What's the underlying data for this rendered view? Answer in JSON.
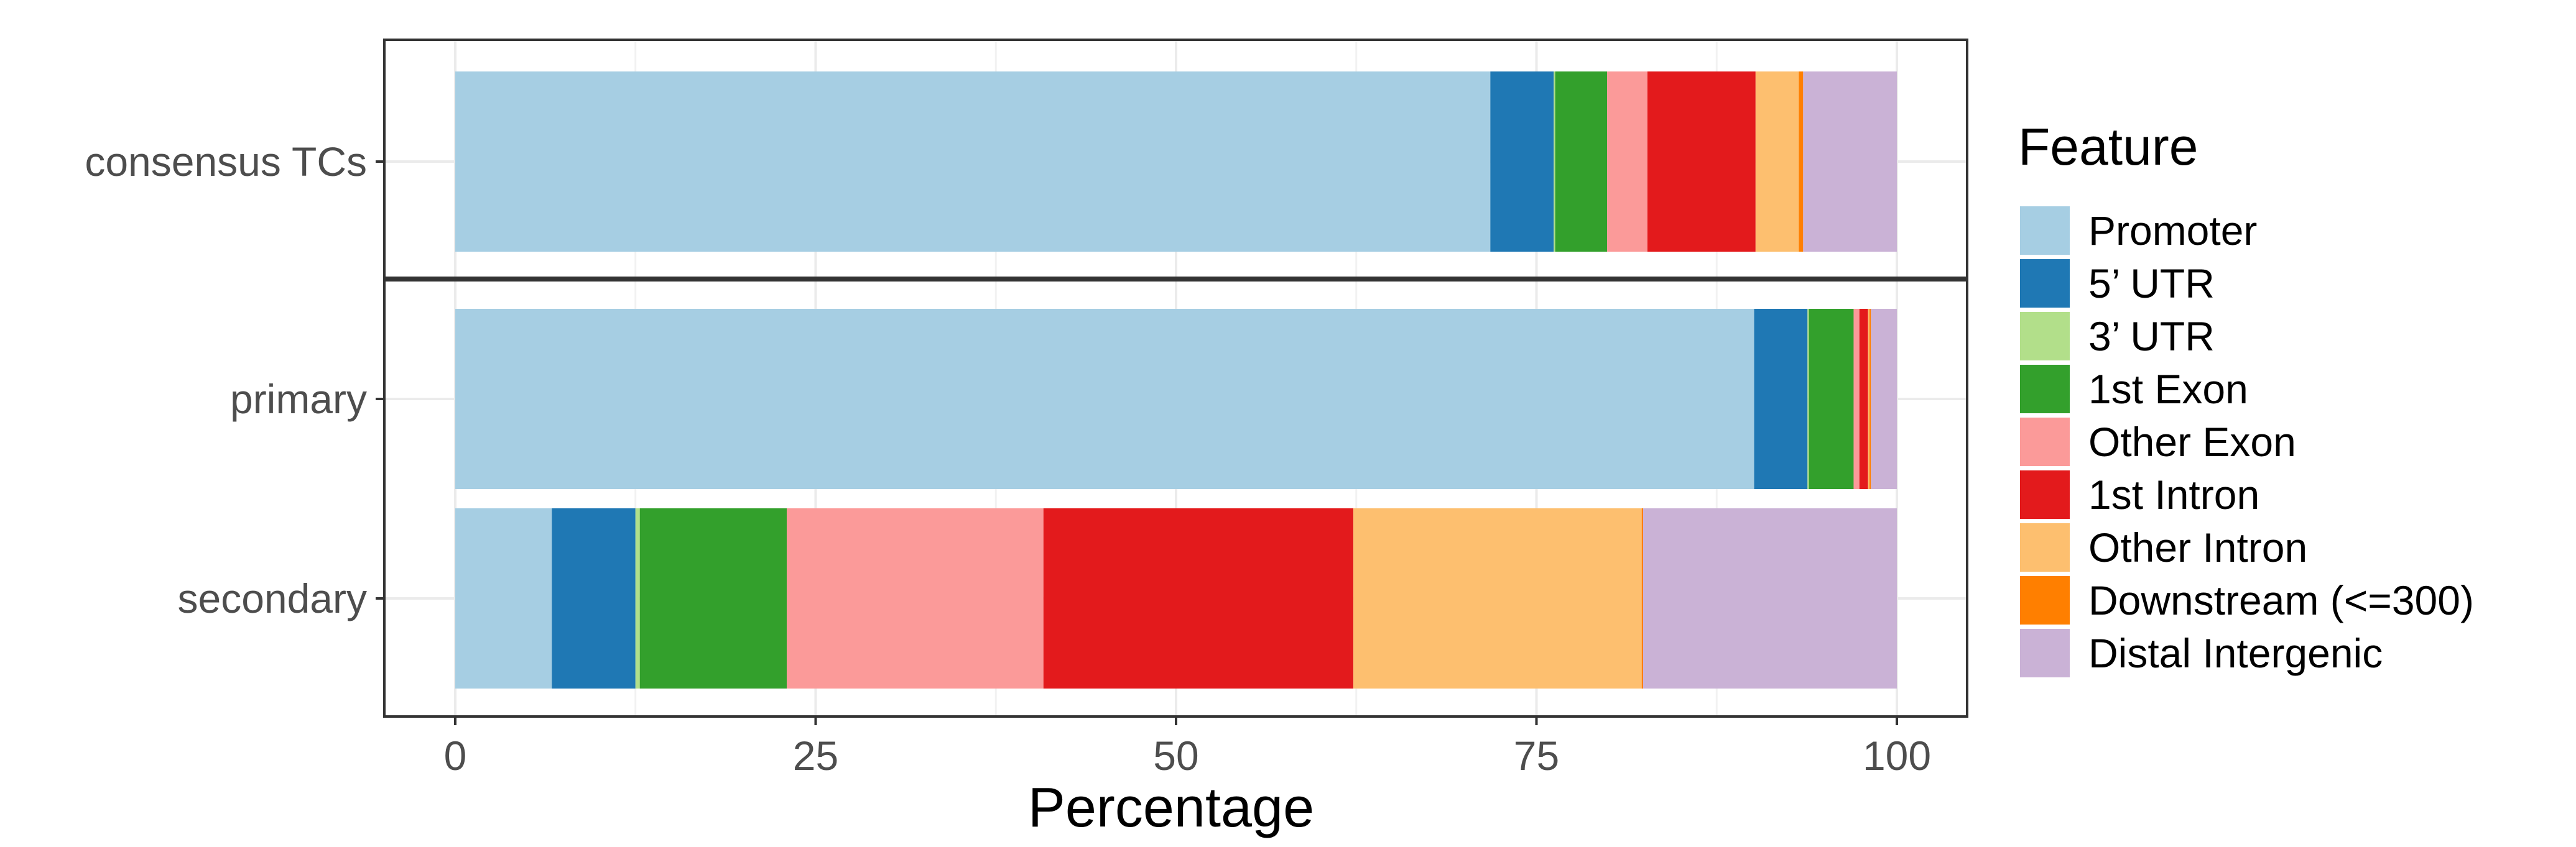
{
  "chart_data": {
    "type": "bar",
    "orientation": "horizontal",
    "stacked": true,
    "xlabel": "Percentage",
    "xlim": [
      0,
      100
    ],
    "xticks": [
      0,
      25,
      50,
      75,
      100
    ],
    "grid": true,
    "legend_position": "right",
    "legend_title": "Feature",
    "features": [
      {
        "name": "Promoter",
        "color": "#a6cee3"
      },
      {
        "name": "5’ UTR",
        "color": "#1f78b4"
      },
      {
        "name": "3’ UTR",
        "color": "#b2df8a"
      },
      {
        "name": "1st Exon",
        "color": "#33a02c"
      },
      {
        "name": "Other Exon",
        "color": "#fb9a99"
      },
      {
        "name": "1st Intron",
        "color": "#e31a1c"
      },
      {
        "name": "Other Intron",
        "color": "#fdbf6f"
      },
      {
        "name": "Downstream (<=300)",
        "color": "#ff7f00"
      },
      {
        "name": "Distal Intergenic",
        "color": "#cab2d6"
      }
    ],
    "panels": [
      {
        "bars": [
          {
            "category": "consensus TCs",
            "values": [
              71.8,
              4.4,
              0.1,
              3.6,
              2.8,
              7.5,
              3.0,
              0.3,
              6.5
            ]
          }
        ]
      },
      {
        "bars": [
          {
            "category": "primary",
            "values": [
              90.1,
              3.7,
              0.1,
              3.1,
              0.4,
              0.6,
              0.1,
              0.1,
              1.8
            ]
          },
          {
            "category": "secondary",
            "values": [
              6.7,
              5.8,
              0.3,
              10.2,
              17.8,
              21.5,
              20.0,
              0.1,
              17.6
            ]
          }
        ]
      }
    ]
  }
}
